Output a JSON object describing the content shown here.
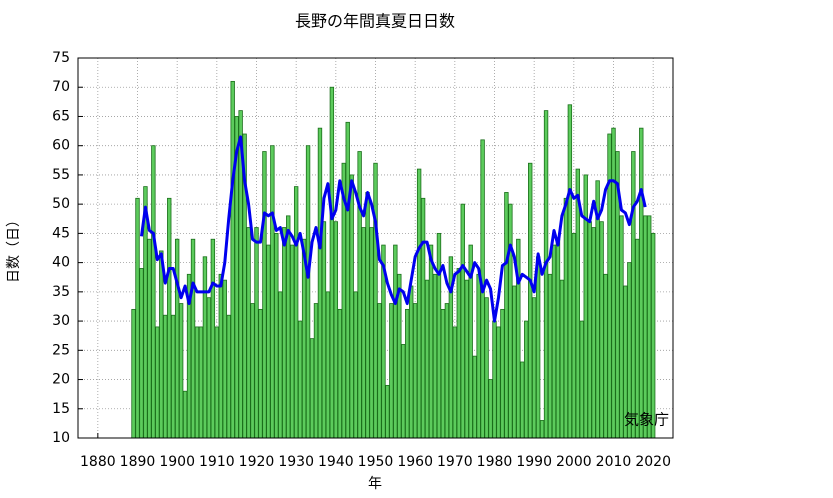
{
  "chart_data": {
    "type": "bar",
    "title": "長野の年間真夏日日数",
    "xlabel": "年",
    "ylabel": "日数（日）",
    "source": "気象庁",
    "grid": true,
    "xlim": [
      1875,
      2025
    ],
    "ylim": [
      10,
      75
    ],
    "xticks": [
      1880,
      1890,
      1900,
      1910,
      1920,
      1930,
      1940,
      1950,
      1960,
      1970,
      1980,
      1990,
      2000,
      2010,
      2020
    ],
    "yticks": [
      10,
      15,
      20,
      25,
      30,
      35,
      40,
      45,
      50,
      55,
      60,
      65,
      70,
      75
    ],
    "x": [
      1889,
      1890,
      1891,
      1892,
      1893,
      1894,
      1895,
      1896,
      1897,
      1898,
      1899,
      1900,
      1901,
      1902,
      1903,
      1904,
      1905,
      1906,
      1907,
      1908,
      1909,
      1910,
      1911,
      1912,
      1913,
      1914,
      1915,
      1916,
      1917,
      1918,
      1919,
      1920,
      1921,
      1922,
      1923,
      1924,
      1925,
      1926,
      1927,
      1928,
      1929,
      1930,
      1931,
      1932,
      1933,
      1934,
      1935,
      1936,
      1937,
      1938,
      1939,
      1940,
      1941,
      1942,
      1943,
      1944,
      1945,
      1946,
      1947,
      1948,
      1949,
      1950,
      1951,
      1952,
      1953,
      1954,
      1955,
      1956,
      1957,
      1958,
      1959,
      1960,
      1961,
      1962,
      1963,
      1964,
      1965,
      1966,
      1967,
      1968,
      1969,
      1970,
      1971,
      1972,
      1973,
      1974,
      1975,
      1976,
      1977,
      1978,
      1979,
      1980,
      1981,
      1982,
      1983,
      1984,
      1985,
      1986,
      1987,
      1988,
      1989,
      1990,
      1991,
      1992,
      1993,
      1994,
      1995,
      1996,
      1997,
      1998,
      1999,
      2000,
      2001,
      2002,
      2003,
      2004,
      2005,
      2006,
      2007,
      2008,
      2009,
      2010,
      2011,
      2012,
      2013,
      2014,
      2015,
      2016,
      2017,
      2018,
      2019,
      2020
    ],
    "series": [
      {
        "type": "bar",
        "color": "#5ccb5c",
        "edge": "#1a6e1a",
        "values": [
          32,
          51,
          39,
          53,
          44,
          60,
          29,
          42,
          31,
          51,
          31,
          44,
          33,
          18,
          38,
          44,
          29,
          29,
          41,
          34,
          44,
          29,
          38,
          37,
          31,
          71,
          65,
          66,
          62,
          46,
          33,
          46,
          32,
          59,
          43,
          60,
          45,
          35,
          46,
          48,
          43,
          53,
          30,
          44,
          60,
          27,
          33,
          63,
          47,
          35,
          70,
          47,
          32,
          57,
          64,
          55,
          35,
          59,
          46,
          52,
          46,
          57,
          33,
          43,
          19,
          33,
          43,
          38,
          26,
          32,
          36,
          33,
          56,
          51,
          37,
          43,
          38,
          45,
          32,
          33,
          41,
          29,
          39,
          50,
          37,
          43,
          24,
          38,
          61,
          34,
          20,
          30,
          29,
          32,
          52,
          50,
          36,
          44,
          23,
          30,
          57,
          34,
          41,
          13,
          66,
          38,
          43,
          44,
          37,
          51,
          67,
          45,
          56,
          30,
          55,
          47,
          46,
          54,
          47,
          38,
          62,
          63,
          59,
          48,
          36,
          40,
          59,
          44,
          63,
          48,
          48,
          45
        ]
      },
      {
        "type": "line",
        "color": "#0000ee",
        "values": [
          null,
          null,
          44.5,
          49.5,
          45.5,
          45,
          40.5,
          41.5,
          36.5,
          39,
          39,
          36.5,
          34,
          36,
          33,
          36.5,
          35,
          35,
          35,
          35,
          36.5,
          36,
          36,
          40,
          47.5,
          54,
          59,
          61.5,
          54,
          50,
          44,
          43.5,
          43.5,
          48.5,
          48,
          48.5,
          45.5,
          46,
          43,
          45.5,
          44.5,
          43,
          45,
          41.5,
          37.5,
          43.5,
          46,
          42.5,
          51,
          53.5,
          47.5,
          49,
          54,
          51,
          49,
          54,
          52,
          49.5,
          48,
          52,
          50,
          47,
          40.5,
          39.5,
          36.5,
          34.5,
          33,
          35.5,
          35,
          33,
          37,
          41,
          42.5,
          43.5,
          43.5,
          40.5,
          39,
          38,
          39.5,
          36.5,
          35,
          38,
          38.5,
          39.5,
          38.5,
          37.5,
          40,
          39,
          35,
          37,
          35.5,
          30,
          34,
          39.5,
          40,
          43,
          41,
          36.5,
          38,
          37.5,
          37,
          35,
          41.5,
          38,
          40,
          41,
          45.5,
          43,
          48,
          50,
          52.5,
          51,
          51.5,
          48,
          47.5,
          47,
          50.5,
          47.5,
          49,
          52.5,
          54,
          54,
          53.5,
          49,
          48.5,
          46.5,
          49.5,
          50.5,
          52.5,
          49.5,
          null,
          null
        ]
      }
    ]
  }
}
